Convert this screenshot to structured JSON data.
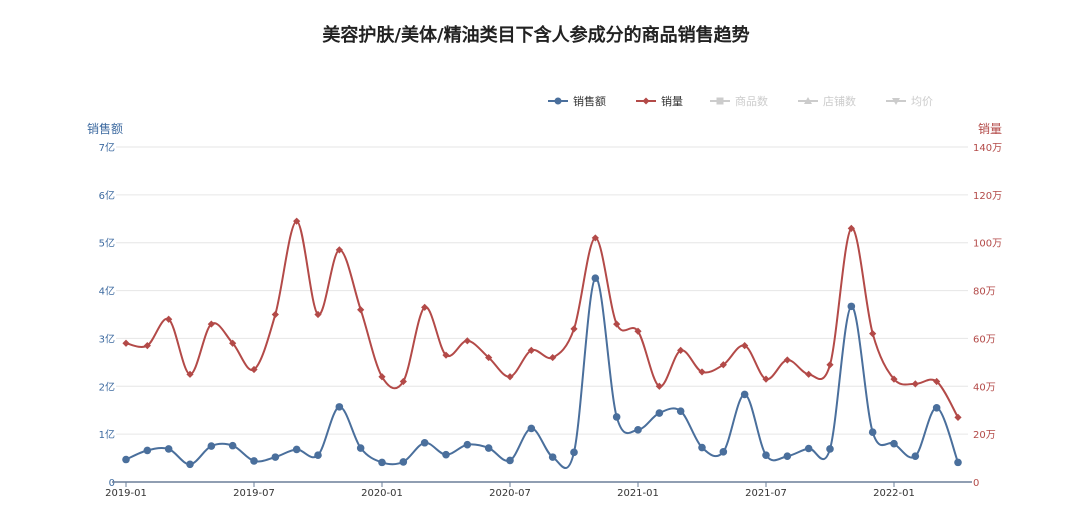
{
  "chart_data": {
    "type": "line",
    "title": "美容护肤/美体/精油类目下含人参成分的商品销售趋势",
    "legend": {
      "placement": "top-right",
      "items": [
        {
          "label": "销售额",
          "color": "#4a6f9c",
          "active": true
        },
        {
          "label": "销量",
          "color": "#b34a48",
          "active": true
        },
        {
          "label": "商品数",
          "color": "#cccccc",
          "active": false
        },
        {
          "label": "店铺数",
          "color": "#cccccc",
          "active": false
        },
        {
          "label": "均价",
          "color": "#cccccc",
          "active": false
        }
      ]
    },
    "x_ticks": [
      "2019-01",
      "2019-07",
      "2020-01",
      "2020-07",
      "2021-01",
      "2021-07",
      "2022-01"
    ],
    "y_left": {
      "label": "销售额",
      "color": "#3d6aa0",
      "range": [
        0,
        7
      ],
      "ticks": [
        "0",
        "1亿",
        "2亿",
        "3亿",
        "4亿",
        "5亿",
        "6亿",
        "7亿"
      ]
    },
    "y_right": {
      "label": "销量",
      "color": "#b34a48",
      "range": [
        0,
        140
      ],
      "ticks": [
        "0",
        "20万",
        "40万",
        "60万",
        "80万",
        "100万",
        "120万",
        "140万"
      ]
    },
    "grid": true,
    "x": [
      "2019-01",
      "2019-02",
      "2019-03",
      "2019-04",
      "2019-05",
      "2019-06",
      "2019-07",
      "2019-08",
      "2019-09",
      "2019-10",
      "2019-11",
      "2019-12",
      "2020-01",
      "2020-02",
      "2020-03",
      "2020-04",
      "2020-05",
      "2020-06",
      "2020-07",
      "2020-08",
      "2020-09",
      "2020-10",
      "2020-11",
      "2020-12",
      "2021-01",
      "2021-02",
      "2021-03",
      "2021-04",
      "2021-05",
      "2021-06",
      "2021-07",
      "2021-08",
      "2021-09",
      "2021-10",
      "2021-11",
      "2021-12",
      "2022-01",
      "2022-02",
      "2022-03",
      "2022-04"
    ],
    "series": [
      {
        "name": "销售额",
        "unit": "亿",
        "axis": "left",
        "color": "#4a6f9c",
        "marker": "circle",
        "values": [
          0.47,
          0.66,
          0.69,
          0.37,
          0.75,
          0.76,
          0.44,
          0.52,
          0.68,
          0.56,
          1.57,
          0.71,
          0.41,
          0.42,
          0.82,
          0.57,
          0.78,
          0.71,
          0.45,
          1.12,
          0.52,
          0.62,
          4.26,
          1.36,
          1.09,
          1.44,
          1.48,
          0.72,
          0.63,
          1.83,
          0.56,
          0.54,
          0.7,
          0.69,
          3.67,
          1.04,
          0.8,
          0.54,
          1.55,
          0.41
        ]
      },
      {
        "name": "销量",
        "unit": "万",
        "axis": "right",
        "color": "#b34a48",
        "marker": "diamond",
        "values": [
          58,
          57,
          68,
          45,
          66,
          58,
          47,
          70,
          109,
          70,
          97,
          72,
          44,
          42,
          73,
          53,
          59,
          52,
          44,
          55,
          52,
          64,
          102,
          66,
          63,
          40,
          55,
          46,
          49,
          57,
          43,
          51,
          45,
          49,
          106,
          62,
          43,
          41,
          42,
          27
        ]
      }
    ]
  }
}
